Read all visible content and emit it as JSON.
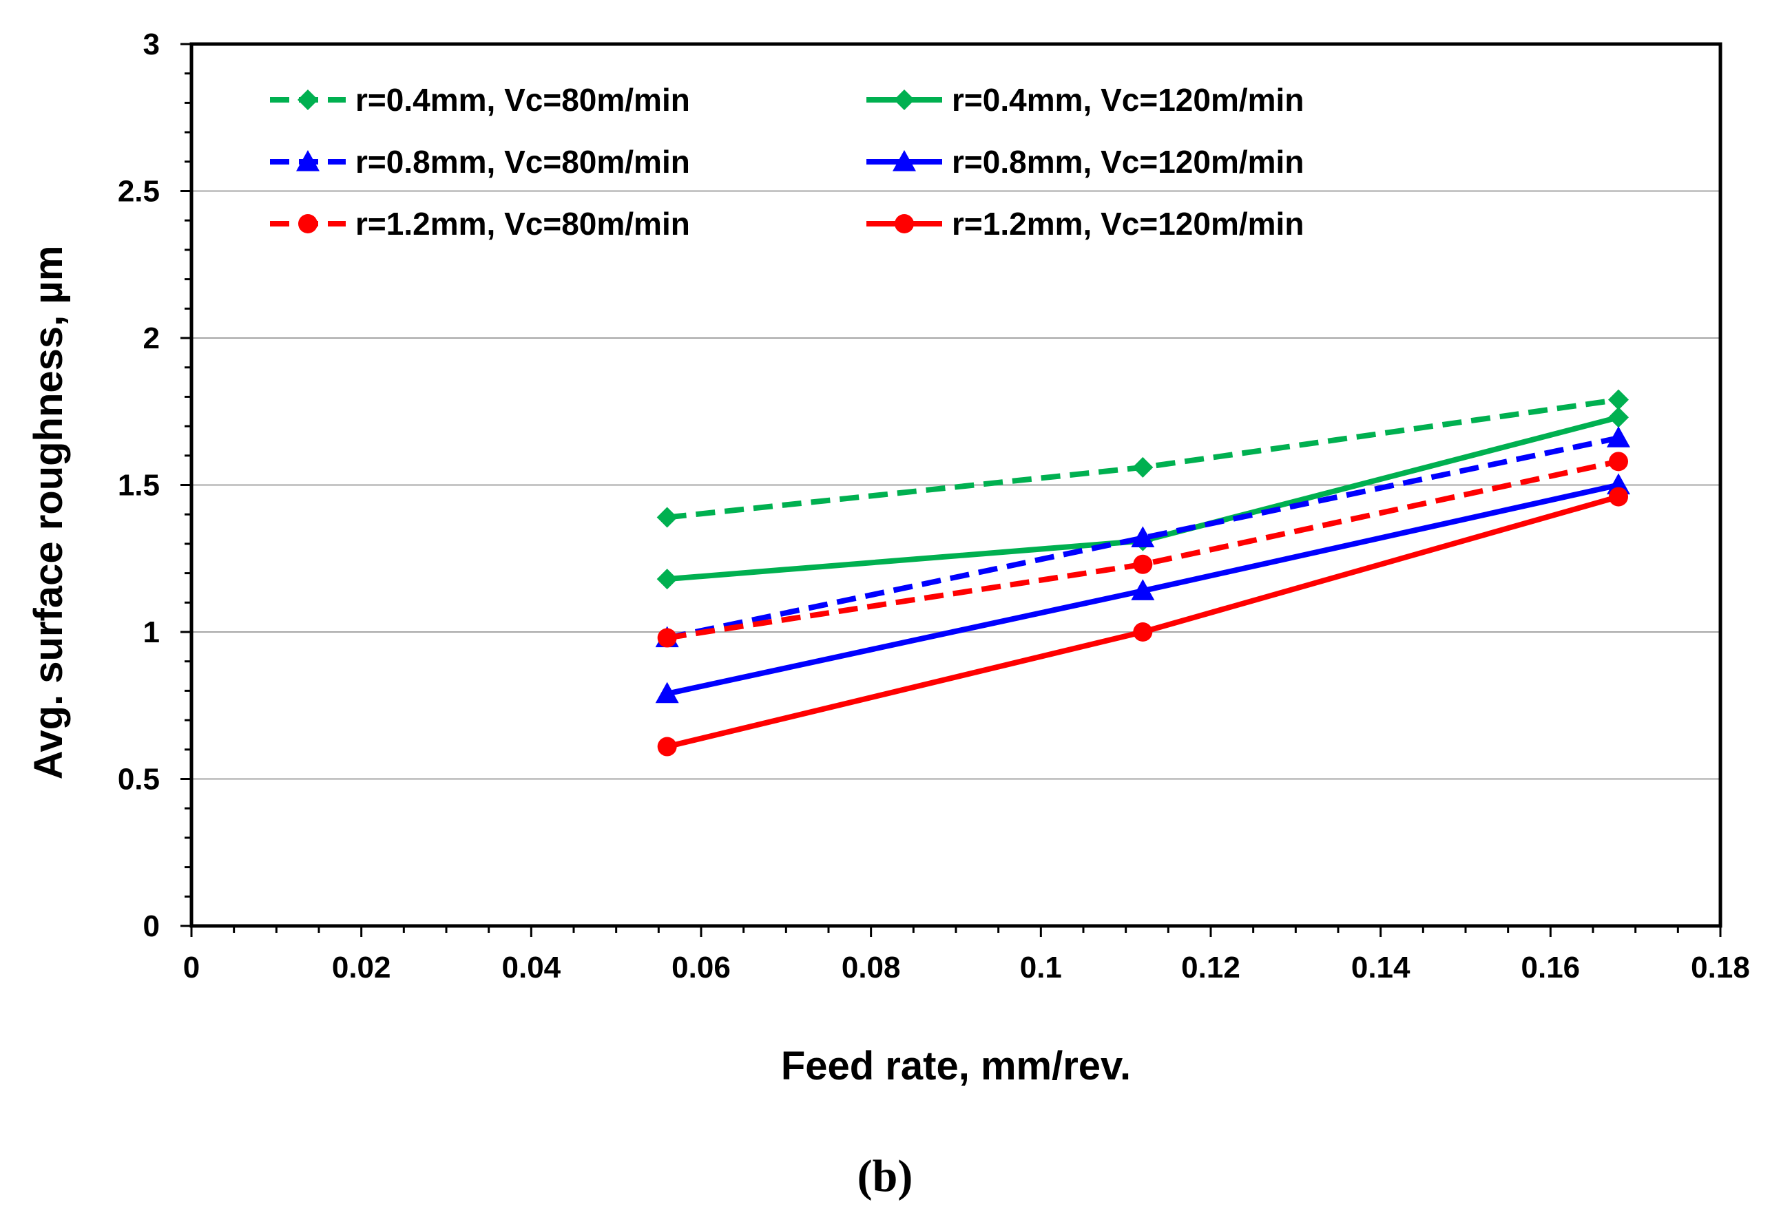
{
  "colors": {
    "green": "#00B050",
    "blue": "#0000FF",
    "red": "#FF0000",
    "grid": "#A6A6A6",
    "axis": "#000000"
  },
  "caption": "(b)",
  "chart_data": {
    "type": "line",
    "title": "",
    "xlabel": "Feed rate, mm/rev.",
    "ylabel": "Avg. surface roughness, µm",
    "xlim": [
      0,
      0.18
    ],
    "ylim": [
      0,
      3
    ],
    "xticks": [
      "0",
      "0.02",
      "0.04",
      "0.06",
      "0.08",
      "0.1",
      "0.12",
      "0.14",
      "0.16",
      "0.18"
    ],
    "yticks": [
      "0",
      "0.5",
      "1",
      "1.5",
      "2",
      "2.5",
      "3"
    ],
    "grid": "horizontal major",
    "legend_position": "top-left",
    "x": [
      0.056,
      0.112,
      0.168
    ],
    "series": [
      {
        "name": "r=0.4mm, Vc=80m/min",
        "values": [
          1.39,
          1.56,
          1.79
        ],
        "color": "#00B050",
        "dash": "dashed",
        "marker": "diamond"
      },
      {
        "name": "r=0.4mm, Vc=120m/min",
        "values": [
          1.18,
          1.31,
          1.73
        ],
        "color": "#00B050",
        "dash": "solid",
        "marker": "diamond"
      },
      {
        "name": "r=0.8mm, Vc=80m/min",
        "values": [
          0.98,
          1.32,
          1.66
        ],
        "color": "#0000FF",
        "dash": "dashed",
        "marker": "triangle"
      },
      {
        "name": "r=0.8mm, Vc=120m/min",
        "values": [
          0.79,
          1.14,
          1.5
        ],
        "color": "#0000FF",
        "dash": "solid",
        "marker": "triangle"
      },
      {
        "name": "r=1.2mm, Vc=80m/min",
        "values": [
          0.98,
          1.23,
          1.58
        ],
        "color": "#FF0000",
        "dash": "dashed",
        "marker": "circle"
      },
      {
        "name": "r=1.2mm, Vc=120m/min",
        "values": [
          0.61,
          1.0,
          1.46
        ],
        "color": "#FF0000",
        "dash": "solid",
        "marker": "circle"
      }
    ]
  }
}
